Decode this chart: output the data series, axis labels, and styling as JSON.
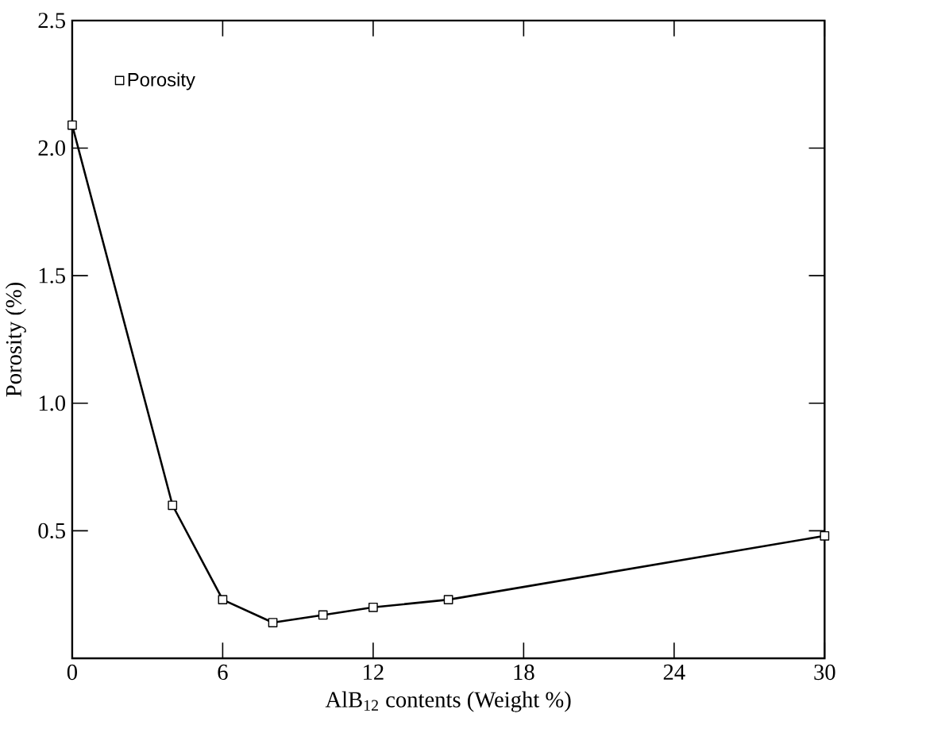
{
  "chart_data": {
    "type": "line",
    "xlabel": "AlB$_{12}$ contents (Weight %)",
    "ylabel": "Porosity (%)",
    "x": [
      0,
      4,
      6,
      8,
      10,
      12,
      15,
      30
    ],
    "series": [
      {
        "name": "Porosity",
        "color": "#000000",
        "values": [
          2.09,
          0.6,
          0.23,
          0.14,
          0.17,
          0.2,
          0.23,
          0.48
        ]
      }
    ],
    "xlim": [
      0,
      30
    ],
    "xticks": [
      0,
      6,
      12,
      18,
      24,
      30
    ],
    "ylim": [
      0,
      2.5
    ],
    "yticks": [
      {
        "value": 0.5,
        "label": "0.5"
      },
      {
        "value": 1,
        "label": "1.0"
      },
      {
        "value": 1.5,
        "label": "1.5"
      },
      {
        "value": 2,
        "label": "2.0"
      },
      {
        "value": 2.5,
        "label": "2.5"
      }
    ],
    "marker": "square",
    "line_style": "solid",
    "grid": false,
    "legend": "top left"
  }
}
